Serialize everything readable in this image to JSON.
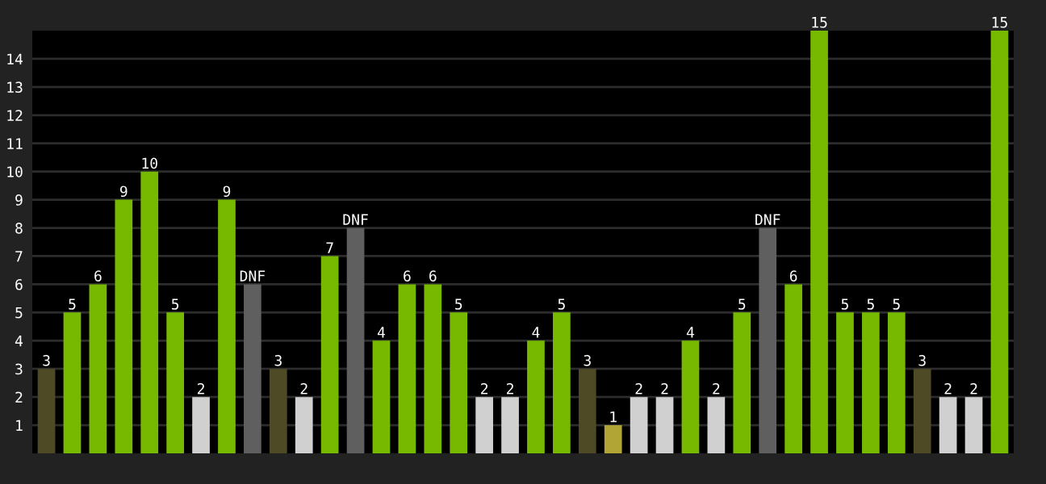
{
  "chart_data": {
    "type": "bar",
    "categories": [
      null,
      null,
      null,
      null,
      null,
      null,
      null,
      null,
      null,
      null,
      null,
      null,
      null,
      null,
      null,
      null,
      null,
      null,
      null,
      null,
      null,
      null,
      null,
      null,
      null,
      null,
      null,
      null,
      null,
      null,
      null,
      null,
      null,
      null,
      null,
      null,
      null,
      null
    ],
    "values": [
      3,
      5,
      6,
      9,
      10,
      5,
      2,
      9,
      6,
      3,
      2,
      7,
      8,
      4,
      6,
      6,
      5,
      2,
      2,
      4,
      5,
      3,
      1,
      2,
      2,
      4,
      2,
      5,
      8,
      6,
      15,
      5,
      5,
      5,
      3,
      2,
      2,
      15
    ],
    "value_labels": [
      "3",
      "5",
      "6",
      "9",
      "10",
      "5",
      "2",
      "9",
      "DNF",
      "3",
      "2",
      "7",
      "DNF",
      "4",
      "6",
      "6",
      "5",
      "2",
      "2",
      "4",
      "5",
      "3",
      "1",
      "2",
      "2",
      "4",
      "2",
      "5",
      "DNF",
      "6",
      "15",
      "5",
      "5",
      "5",
      "3",
      "2",
      "2",
      "15"
    ],
    "colors": [
      "#4d4a25",
      "#76b900",
      "#76b900",
      "#76b900",
      "#76b900",
      "#76b900",
      "#d0d0d0",
      "#76b900",
      "#5f5f5f",
      "#4d4a25",
      "#d0d0d0",
      "#76b900",
      "#5f5f5f",
      "#76b900",
      "#76b900",
      "#76b900",
      "#76b900",
      "#d0d0d0",
      "#d0d0d0",
      "#76b900",
      "#76b900",
      "#4d4a25",
      "#b0a535",
      "#d0d0d0",
      "#d0d0d0",
      "#76b900",
      "#d0d0d0",
      "#76b900",
      "#5f5f5f",
      "#76b900",
      "#76b900",
      "#76b900",
      "#76b900",
      "#76b900",
      "#4d4a25",
      "#d0d0d0",
      "#d0d0d0",
      "#76b900"
    ],
    "ylim": [
      0,
      15
    ],
    "yticks": [
      1,
      2,
      3,
      4,
      5,
      6,
      7,
      8,
      9,
      10,
      11,
      12,
      13,
      14
    ],
    "grid": "y",
    "tick_labels": "y"
  }
}
